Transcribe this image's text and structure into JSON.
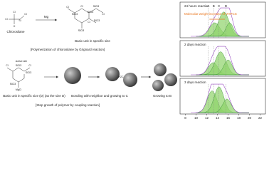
{
  "top": {
    "chlorosilane": "Chlorosilane",
    "reagent": "Mg",
    "basic_unit": "Basic unit in specific size",
    "caption": "[Polymerization of chlorosilane by Grignard reaction]",
    "atoms": [
      "Cl",
      "Cl",
      "H",
      "Si",
      "Cl"
    ],
    "unit_atoms": [
      "Cl",
      "SiCl3",
      "Cl",
      "SiCl3",
      "SiCl3",
      "Cl",
      "SiCl3",
      "SiCl3",
      "Cl"
    ]
  },
  "bottom": {
    "active_site": "Active site",
    "basic_unit": "Basic unit in specific size (D) (as the size D)",
    "bonding": "Bonding with neighbor and growing to C",
    "growing": "Growing to B",
    "caption": "[Step growth of polymer by coupling reaction]",
    "atoms": [
      "Cl",
      "SiCl3",
      "Cl",
      "SiCl3",
      "MgCl",
      "SiCl3"
    ],
    "link": "H2C"
  },
  "chart": {
    "panels": [
      "24 hours reaction",
      "2 days reaction",
      "3 days reaction"
    ],
    "peaks": [
      "A",
      "B",
      "C",
      "D"
    ],
    "annotation": "Molecular weight increase of VHPCS",
    "xlabel": "Retention Time (min)",
    "xlim": [
      7,
      23
    ],
    "xticks": [
      8,
      10,
      12,
      14,
      16,
      18,
      20,
      22
    ]
  }
}
